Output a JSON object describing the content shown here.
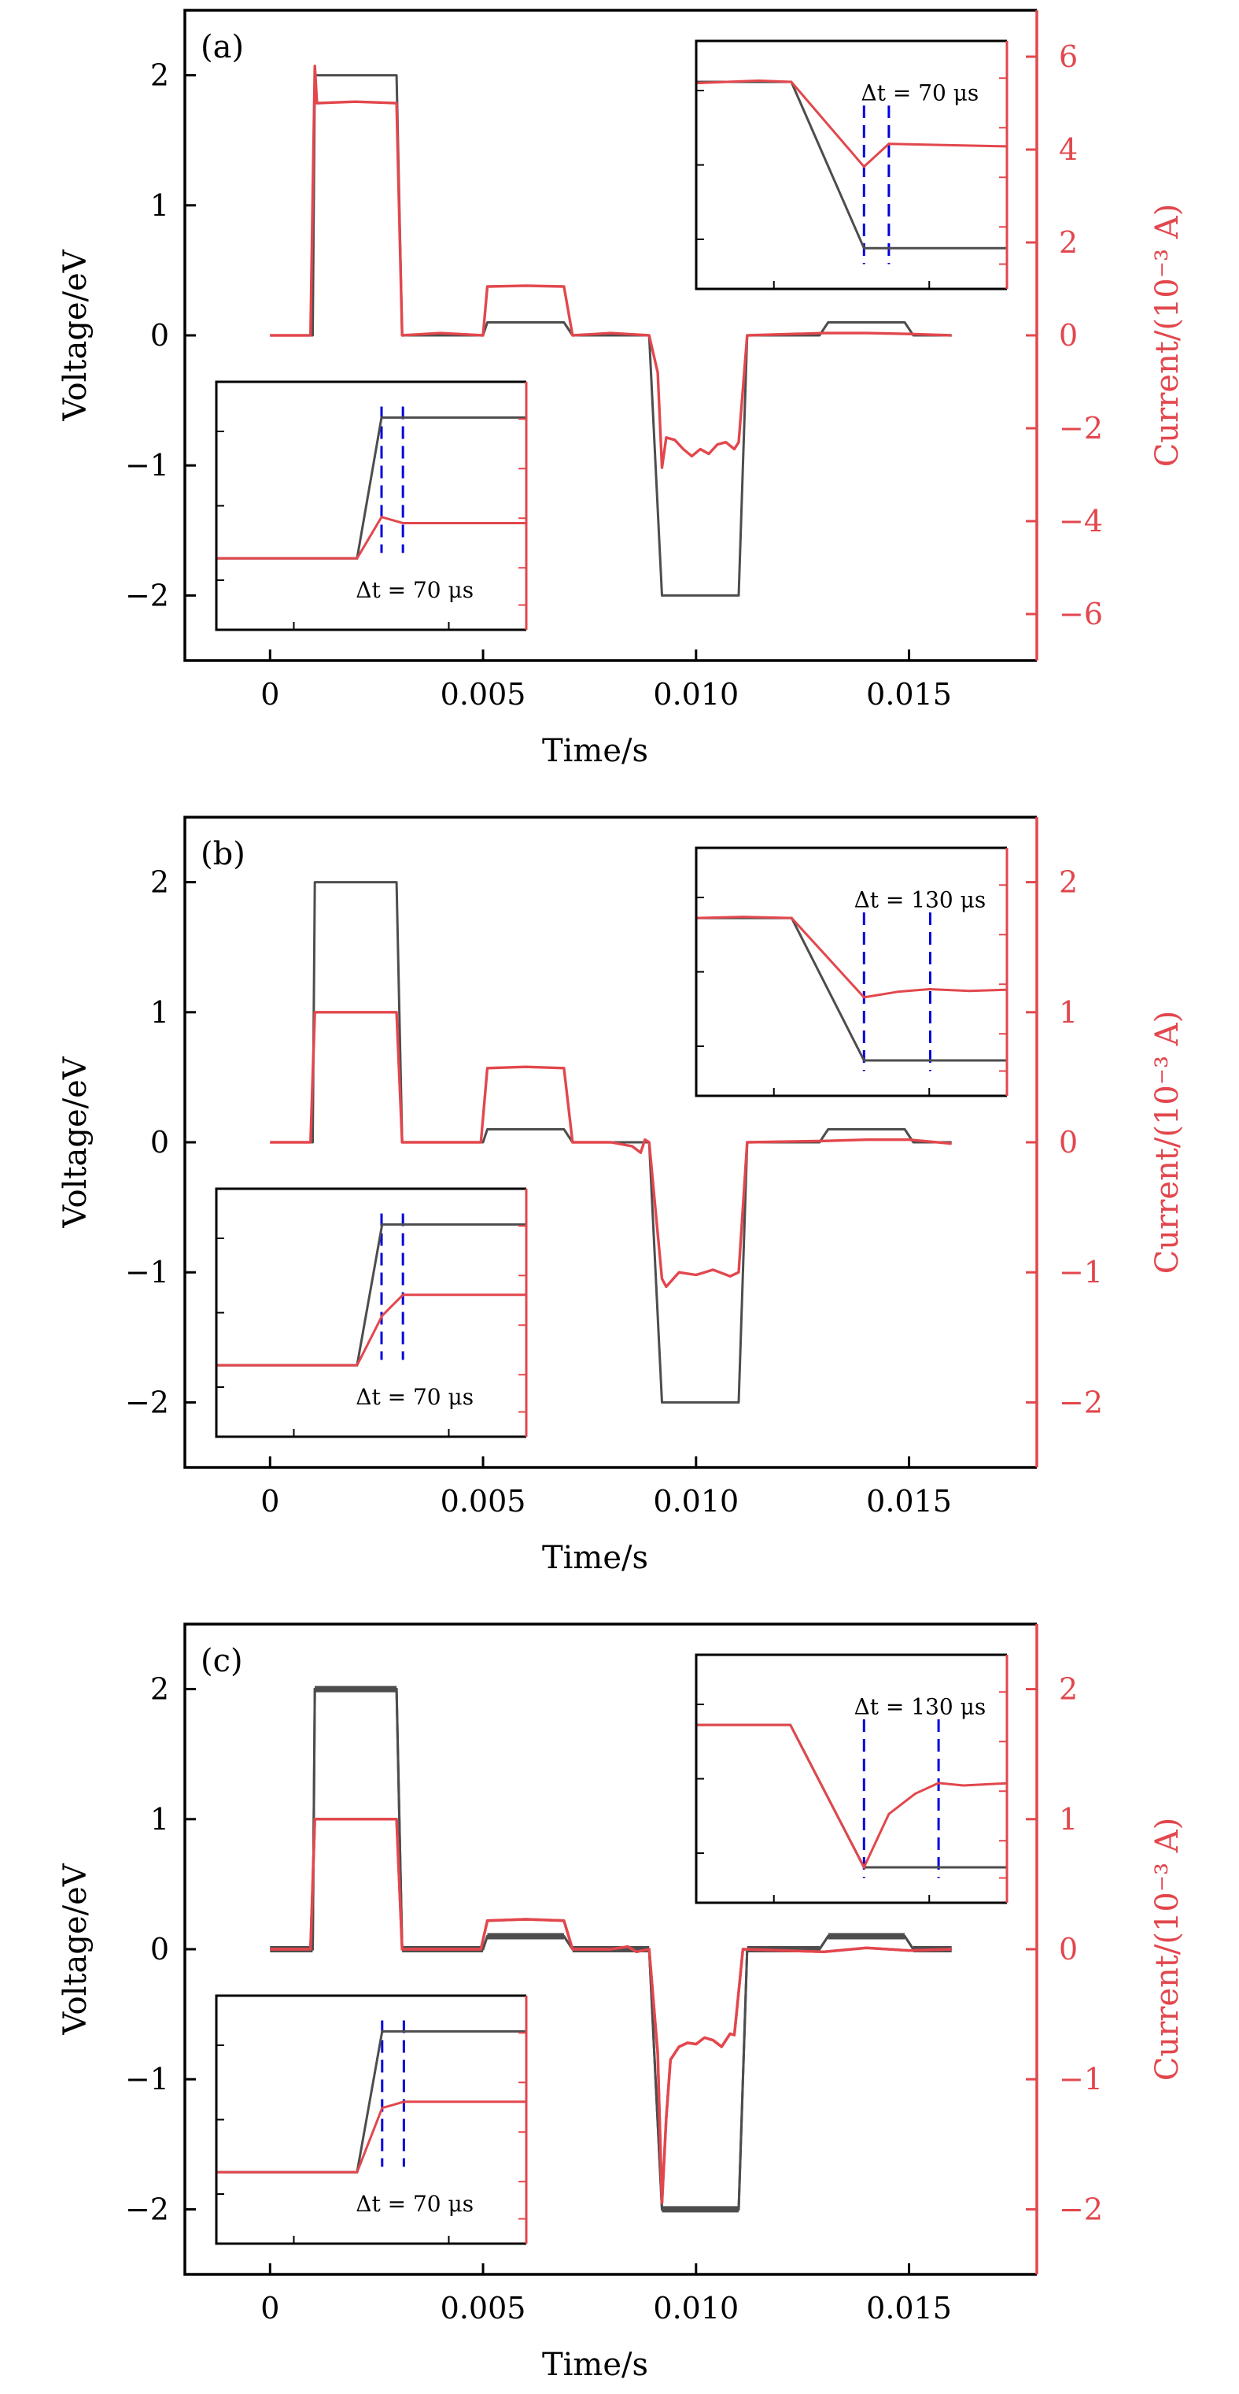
{
  "colors": {
    "voltage": "#4d4d4d",
    "current": "#e2474d",
    "frame": "#000000",
    "right_axis": "#e2474d",
    "marker": "#0000dd"
  },
  "chart_data": [
    {
      "panel": "(a)",
      "type": "line",
      "xlabel": "Time/s",
      "ylabel": "Voltage/eV",
      "y2label": "Current/(10⁻³ A)",
      "xlim": [
        -0.002,
        0.018
      ],
      "ylim": [
        -2.5,
        2.5
      ],
      "y2lim": [
        -7,
        7
      ],
      "xticks": [
        0,
        0.005,
        0.01,
        0.015
      ],
      "xtick_labels": [
        "0",
        "0.005",
        "0.010",
        "0.015"
      ],
      "yticks": [
        -2,
        -1,
        0,
        1,
        2
      ],
      "ytick_labels": [
        "−2",
        "−1",
        "0",
        "1",
        "2"
      ],
      "y2ticks": [
        -6,
        -4,
        -2,
        0,
        2,
        4,
        6
      ],
      "y2tick_labels": [
        "−6",
        "−4",
        "−2",
        "0",
        "2",
        "4",
        "6"
      ],
      "series": [
        {
          "name": "Voltage",
          "axis": "left",
          "x": [
            0,
            0.001,
            0.00105,
            0.00297,
            0.0031,
            0.005,
            0.0051,
            0.0069,
            0.0071,
            0.0089,
            0.0092,
            0.011,
            0.0112,
            0.0129,
            0.0131,
            0.0149,
            0.0151,
            0.016
          ],
          "y": [
            0,
            0,
            2,
            2,
            0,
            0,
            0.1,
            0.1,
            0,
            0,
            -2,
            -2,
            0,
            0,
            0.1,
            0.1,
            0,
            0
          ]
        },
        {
          "name": "Current",
          "axis": "right",
          "x": [
            0,
            0.00095,
            0.001,
            0.00105,
            0.0011,
            0.002,
            0.00297,
            0.0031,
            0.004,
            0.005,
            0.0051,
            0.006,
            0.0069,
            0.0071,
            0.008,
            0.0089,
            0.0091,
            0.0092,
            0.0093,
            0.0095,
            0.0097,
            0.0099,
            0.0101,
            0.0103,
            0.0105,
            0.0107,
            0.0109,
            0.011,
            0.0112,
            0.013,
            0.014,
            0.015,
            0.016
          ],
          "y": [
            0,
            0,
            3.0,
            5.8,
            5.0,
            5.03,
            5.0,
            0,
            0.05,
            0,
            1.05,
            1.07,
            1.05,
            0,
            0.05,
            0,
            -0.8,
            -2.85,
            -2.2,
            -2.25,
            -2.45,
            -2.6,
            -2.45,
            -2.55,
            -2.35,
            -2.3,
            -2.45,
            -2.3,
            0,
            0.05,
            0.05,
            0.03,
            0
          ]
        }
      ],
      "insets": [
        {
          "position": "top-right",
          "note": "normalized inset coordinates",
          "annotation": "Δt = 70 μs",
          "markers_x": [
            0.54,
            0.62
          ],
          "voltage": {
            "x": [
              0,
              0.306,
              0.54,
              1
            ],
            "y": [
              0.835,
              0.835,
              0.164,
              0.164
            ]
          },
          "current": {
            "x": [
              0,
              0.2,
              0.306,
              0.54,
              0.62,
              0.8,
              1
            ],
            "y": [
              0.83,
              0.84,
              0.835,
              0.493,
              0.585,
              0.58,
              0.575
            ]
          }
        },
        {
          "position": "bottom-left",
          "note": "normalized inset coordinates",
          "annotation": "Δt = 70 μs",
          "markers_x": [
            0.533,
            0.602
          ],
          "voltage": {
            "x": [
              0,
              0.454,
              0.533,
              1
            ],
            "y": [
              0.288,
              0.288,
              0.856,
              0.856
            ]
          },
          "current": {
            "x": [
              0,
              0.454,
              0.533,
              0.602,
              1
            ],
            "y": [
              0.288,
              0.288,
              0.455,
              0.43,
              0.43
            ]
          }
        }
      ]
    },
    {
      "panel": "(b)",
      "type": "line",
      "xlabel": "Time/s",
      "ylabel": "Voltage/eV",
      "y2label": "Current/(10⁻³ A)",
      "xlim": [
        -0.002,
        0.018
      ],
      "ylim": [
        -2.5,
        2.5
      ],
      "y2lim": [
        -2.5,
        2.5
      ],
      "xticks": [
        0,
        0.005,
        0.01,
        0.015
      ],
      "xtick_labels": [
        "0",
        "0.005",
        "0.010",
        "0.015"
      ],
      "yticks": [
        -2,
        -1,
        0,
        1,
        2
      ],
      "ytick_labels": [
        "−2",
        "−1",
        "0",
        "1",
        "2"
      ],
      "y2ticks": [
        -2,
        -1,
        0,
        1,
        2
      ],
      "y2tick_labels": [
        "−2",
        "−1",
        "0",
        "1",
        "2"
      ],
      "series": [
        {
          "name": "Voltage",
          "axis": "left",
          "x": [
            0,
            0.001,
            0.00105,
            0.00297,
            0.0031,
            0.005,
            0.0051,
            0.0069,
            0.0071,
            0.0089,
            0.0092,
            0.011,
            0.0112,
            0.0129,
            0.0131,
            0.0149,
            0.0151,
            0.016
          ],
          "y": [
            0,
            0,
            2,
            2,
            0,
            0,
            0.1,
            0.1,
            0,
            0,
            -2,
            -2,
            0,
            0,
            0.1,
            0.1,
            0,
            0
          ]
        },
        {
          "name": "Current",
          "axis": "right",
          "x": [
            0,
            0.00095,
            0.00105,
            0.002,
            0.00297,
            0.0031,
            0.004,
            0.00495,
            0.0051,
            0.006,
            0.0069,
            0.0071,
            0.008,
            0.0085,
            0.0087,
            0.0088,
            0.0089,
            0.0092,
            0.0093,
            0.0096,
            0.01,
            0.0104,
            0.0108,
            0.011,
            0.0112,
            0.013,
            0.014,
            0.015,
            0.016
          ],
          "y": [
            0,
            0,
            1.0,
            1.0,
            1.0,
            0,
            0,
            0,
            0.57,
            0.58,
            0.57,
            0,
            0,
            -0.03,
            -0.08,
            0.02,
            0,
            -1.05,
            -1.11,
            -1.0,
            -1.02,
            -0.98,
            -1.03,
            -1.0,
            0,
            0.01,
            0.02,
            0.02,
            -0.01
          ]
        }
      ],
      "insets": [
        {
          "position": "top-right",
          "note": "normalized inset coordinates",
          "annotation": "Δt = 130 μs",
          "markers_x": [
            0.54,
            0.753
          ],
          "voltage": {
            "x": [
              0,
              0.307,
              0.54,
              1
            ],
            "y": [
              0.717,
              0.717,
              0.143,
              0.143
            ]
          },
          "current": {
            "x": [
              0,
              0.15,
              0.307,
              0.54,
              0.65,
              0.75,
              0.88,
              1
            ],
            "y": [
              0.717,
              0.722,
              0.717,
              0.397,
              0.42,
              0.43,
              0.423,
              0.428
            ]
          }
        },
        {
          "position": "bottom-left",
          "note": "normalized inset coordinates",
          "annotation": "Δt = 70 μs",
          "markers_x": [
            0.533,
            0.602
          ],
          "voltage": {
            "x": [
              0,
              0.454,
              0.535,
              1
            ],
            "y": [
              0.288,
              0.288,
              0.856,
              0.856
            ]
          },
          "current": {
            "x": [
              0,
              0.454,
              0.535,
              0.602,
              1
            ],
            "y": [
              0.288,
              0.288,
              0.488,
              0.572,
              0.572
            ]
          }
        }
      ]
    },
    {
      "panel": "(c)",
      "type": "line",
      "xlabel": "Time/s",
      "ylabel": "Voltage/eV",
      "y2label": "Current/(10⁻³ A)",
      "xlim": [
        -0.002,
        0.018
      ],
      "ylim": [
        -2.5,
        2.5
      ],
      "y2lim": [
        -2.5,
        2.5
      ],
      "xticks": [
        0,
        0.005,
        0.01,
        0.015
      ],
      "xtick_labels": [
        "0",
        "0.005",
        "0.010",
        "0.015"
      ],
      "yticks": [
        -2,
        -1,
        0,
        1,
        2
      ],
      "ytick_labels": [
        "−2",
        "−1",
        "0",
        "1",
        "2"
      ],
      "y2ticks": [
        -2,
        -1,
        0,
        1,
        2
      ],
      "y2tick_labels": [
        "−2",
        "−1",
        "0",
        "1",
        "2"
      ],
      "series": [
        {
          "name": "Voltage",
          "axis": "left",
          "thick_plateaus": true,
          "x": [
            0,
            0.001,
            0.00105,
            0.00297,
            0.0031,
            0.005,
            0.0051,
            0.0069,
            0.0071,
            0.0089,
            0.0092,
            0.011,
            0.0112,
            0.0129,
            0.0131,
            0.0149,
            0.0151,
            0.016
          ],
          "y": [
            0,
            0,
            2,
            2,
            0,
            0,
            0.1,
            0.1,
            0,
            0,
            -2,
            -2,
            0,
            0,
            0.1,
            0.1,
            0,
            0
          ]
        },
        {
          "name": "Current",
          "axis": "right",
          "x": [
            0,
            0.00095,
            0.00105,
            0.002,
            0.00297,
            0.0031,
            0.004,
            0.00495,
            0.0051,
            0.006,
            0.0069,
            0.0071,
            0.008,
            0.0084,
            0.0086,
            0.0089,
            0.0091,
            0.0092,
            0.0093,
            0.0094,
            0.0096,
            0.0098,
            0.01,
            0.0102,
            0.0104,
            0.0106,
            0.0108,
            0.0109,
            0.0111,
            0.013,
            0.014,
            0.015,
            0.016
          ],
          "y": [
            0,
            0,
            1.0,
            1.0,
            1.0,
            0,
            0,
            0,
            0.22,
            0.23,
            0.22,
            0,
            0,
            0.02,
            -0.02,
            0,
            -0.8,
            -1.95,
            -1.3,
            -0.85,
            -0.75,
            -0.72,
            -0.73,
            -0.68,
            -0.7,
            -0.75,
            -0.65,
            -0.66,
            0,
            -0.02,
            0.01,
            -0.01,
            0
          ]
        }
      ],
      "insets": [
        {
          "position": "top-right",
          "note": "normalized inset coordinates",
          "annotation": "Δt = 130 μs",
          "markers_x": [
            0.54,
            0.78
          ],
          "voltage": {
            "x": [
              0,
              0.303,
              0.54,
              1
            ],
            "y": [
              0.717,
              0.717,
              0.143,
              0.143
            ]
          },
          "current": {
            "x": [
              0,
              0.303,
              0.54,
              0.62,
              0.705,
              0.78,
              0.86,
              1
            ],
            "y": [
              0.717,
              0.717,
              0.143,
              0.358,
              0.44,
              0.483,
              0.473,
              0.482
            ]
          }
        },
        {
          "position": "bottom-left",
          "note": "normalized inset coordinates",
          "annotation": "Δt = 70 μs",
          "markers_x": [
            0.535,
            0.605
          ],
          "voltage": {
            "x": [
              0,
              0.454,
              0.535,
              1
            ],
            "y": [
              0.288,
              0.288,
              0.856,
              0.856
            ]
          },
          "current": {
            "x": [
              0,
              0.454,
              0.535,
              0.605,
              1
            ],
            "y": [
              0.288,
              0.288,
              0.547,
              0.572,
              0.572
            ]
          }
        }
      ]
    }
  ]
}
